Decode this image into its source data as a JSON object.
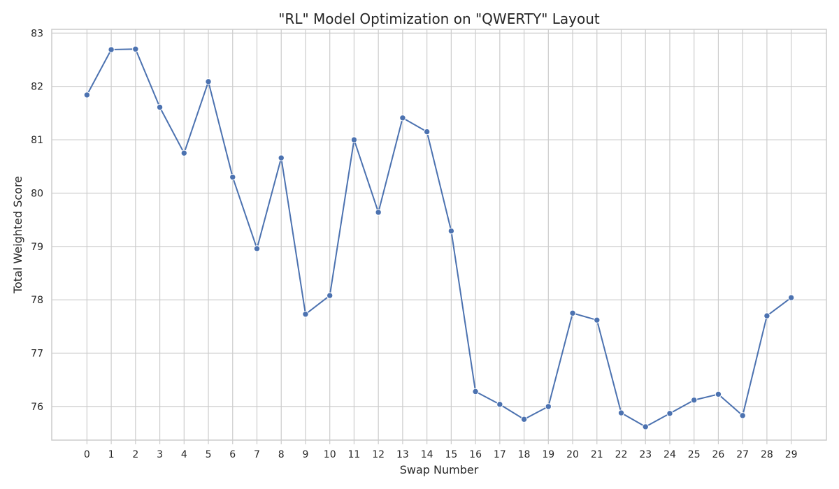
{
  "chart_data": {
    "type": "line",
    "title": "\"RL\" Model Optimization on \"QWERTY\" Layout",
    "xlabel": "Swap Number",
    "ylabel": "Total Weighted Score",
    "x": [
      0,
      1,
      2,
      3,
      4,
      5,
      6,
      7,
      8,
      9,
      10,
      11,
      12,
      13,
      14,
      15,
      16,
      17,
      18,
      19,
      20,
      21,
      22,
      23,
      24,
      25,
      26,
      27,
      28,
      29
    ],
    "xticks": [
      "0",
      "1",
      "2",
      "3",
      "4",
      "5",
      "6",
      "7",
      "8",
      "9",
      "10",
      "11",
      "12",
      "13",
      "14",
      "15",
      "16",
      "17",
      "18",
      "19",
      "20",
      "21",
      "22",
      "23",
      "24",
      "25",
      "26",
      "27",
      "28",
      "29"
    ],
    "yticks": [
      "76",
      "77",
      "78",
      "79",
      "80",
      "81",
      "82",
      "83"
    ],
    "xlim": [
      -1.45,
      30.45
    ],
    "ylim": [
      75.37,
      83.07
    ],
    "grid": true,
    "series": [
      {
        "values": [
          81.84,
          82.69,
          82.7,
          81.61,
          80.75,
          82.09,
          80.3,
          78.96,
          80.66,
          77.73,
          78.08,
          81.0,
          79.64,
          81.41,
          81.15,
          79.29,
          76.28,
          76.04,
          75.76,
          76.0,
          77.75,
          77.62,
          75.88,
          75.62,
          75.87,
          76.12,
          76.23,
          75.83,
          77.7,
          78.04
        ],
        "color": "#4c72b0"
      }
    ]
  }
}
